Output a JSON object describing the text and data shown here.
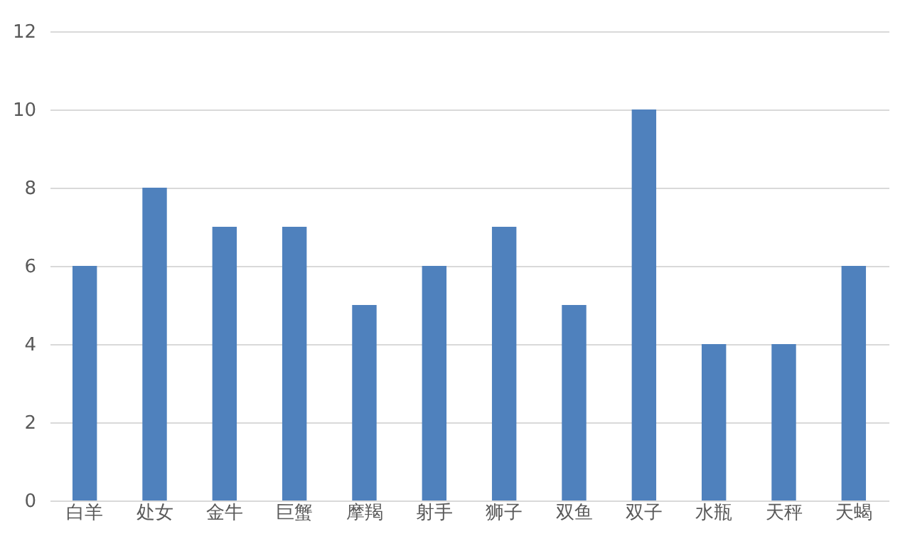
{
  "chart_data": {
    "type": "bar",
    "categories": [
      "白羊",
      "处女",
      "金牛",
      "巨蟹",
      "摩羯",
      "射手",
      "狮子",
      "双鱼",
      "双子",
      "水瓶",
      "天秤",
      "天蝎"
    ],
    "values": [
      6,
      8,
      7,
      7,
      5,
      6,
      7,
      5,
      10,
      4,
      4,
      6
    ],
    "color": "#4f81bd",
    "ylim": [
      0,
      12
    ],
    "yticks": [
      0,
      2,
      4,
      6,
      8,
      10,
      12
    ],
    "grid": "y"
  }
}
